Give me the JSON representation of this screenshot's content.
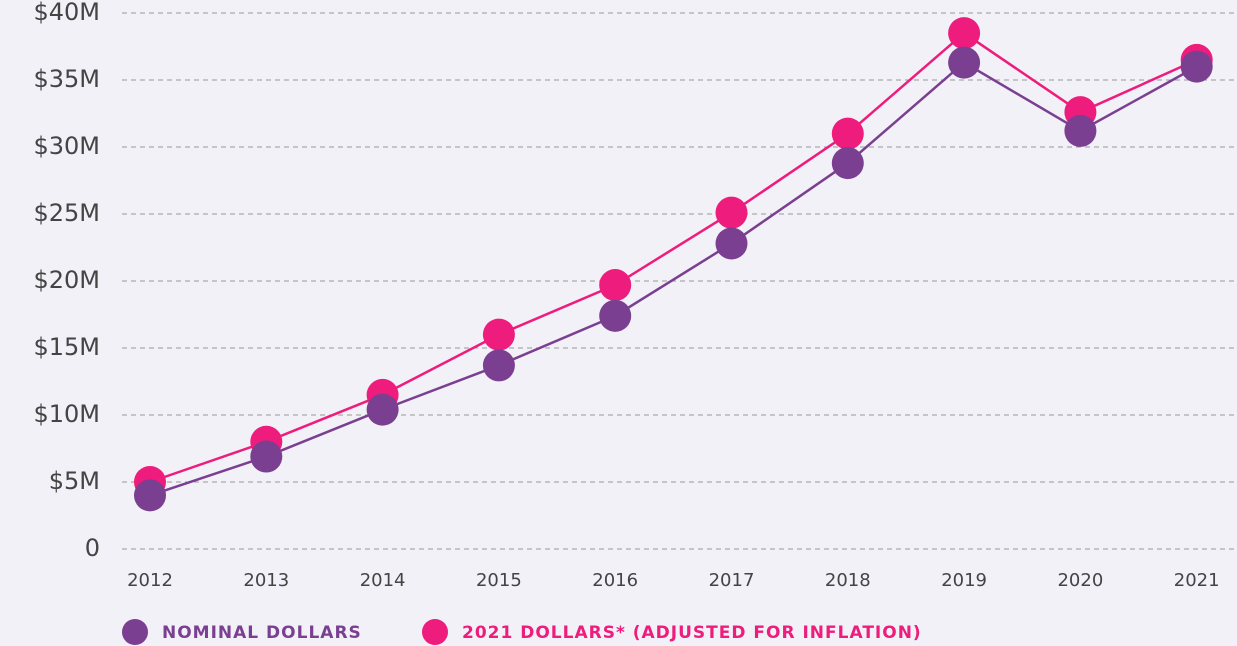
{
  "chart_data": {
    "type": "line",
    "categories": [
      "2012",
      "2013",
      "2014",
      "2015",
      "2016",
      "2017",
      "2018",
      "2019",
      "2020",
      "2021"
    ],
    "series": [
      {
        "name": "NOMINAL DOLLARS",
        "color": "#7b3f91",
        "values": [
          4000000,
          6900000,
          10400000,
          13700000,
          17400000,
          22800000,
          28800000,
          36300000,
          31200000,
          36000000
        ]
      },
      {
        "name": "2021 DOLLARS* (ADJUSTED FOR INFLATION)",
        "color": "#ee1c7c",
        "values": [
          5000000,
          8000000,
          11500000,
          16000000,
          19700000,
          25100000,
          31000000,
          38500000,
          32600000,
          36500000
        ]
      }
    ],
    "ylim": [
      0,
      40000000
    ],
    "yticks": [
      0,
      {
        "value": 5000000,
        "label": "$5M"
      },
      {
        "value": 10000000,
        "label": "$10M"
      },
      {
        "value": 15000000,
        "label": "$15M"
      },
      {
        "value": 20000000,
        "label": "$20M"
      },
      {
        "value": 25000000,
        "label": "$25M"
      },
      {
        "value": 30000000,
        "label": "$30M"
      },
      {
        "value": 35000000,
        "label": "$35M"
      },
      {
        "value": 40000000,
        "label": "$40M"
      }
    ],
    "grid": true
  }
}
